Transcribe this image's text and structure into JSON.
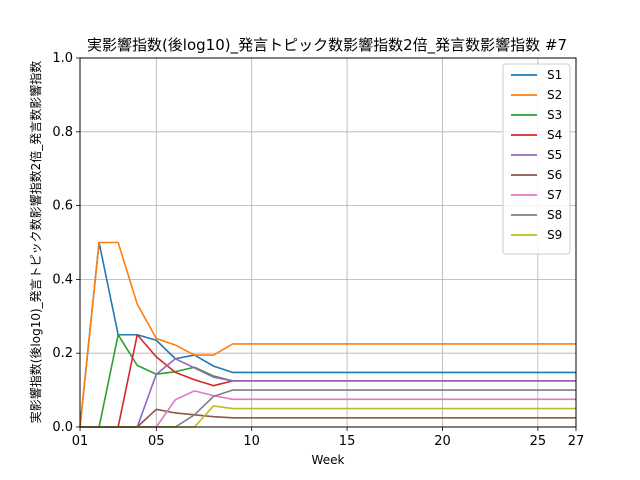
{
  "chart_data": {
    "type": "line",
    "title": "実影響指数(後log10)_発言トピック数影響指数2倍_発言数影響指数 #7",
    "xlabel": "Week",
    "ylabel": "実影響指数(後log10)_発言トピック数影響指数2倍_発言数影響指数",
    "xlim": [
      1,
      27
    ],
    "ylim": [
      0,
      1.0
    ],
    "xticks": [
      {
        "value": 1,
        "label": "01"
      },
      {
        "value": 5,
        "label": "05"
      },
      {
        "value": 10,
        "label": "10"
      },
      {
        "value": 15,
        "label": "15"
      },
      {
        "value": 20,
        "label": "20"
      },
      {
        "value": 25,
        "label": "25"
      },
      {
        "value": 27,
        "label": "27"
      }
    ],
    "yticks": [
      {
        "value": 0.0,
        "label": "0.0"
      },
      {
        "value": 0.2,
        "label": "0.2"
      },
      {
        "value": 0.4,
        "label": "0.4"
      },
      {
        "value": 0.6,
        "label": "0.6"
      },
      {
        "value": 0.8,
        "label": "0.8"
      },
      {
        "value": 1.0,
        "label": "1.0"
      }
    ],
    "grid": true,
    "legend_position": "top-right",
    "x": [
      1,
      2,
      3,
      4,
      5,
      6,
      7,
      8,
      9,
      10,
      11,
      12,
      13,
      14,
      15,
      16,
      17,
      18,
      19,
      20,
      21,
      22,
      23,
      24,
      25,
      26,
      27
    ],
    "series": [
      {
        "name": "S1",
        "color": "#1f77b4",
        "values": [
          0,
          0.5,
          0.25,
          0.25,
          0.235,
          0.185,
          0.195,
          0.165,
          0.148,
          0.148,
          0.148,
          0.148,
          0.148,
          0.148,
          0.148,
          0.148,
          0.148,
          0.148,
          0.148,
          0.148,
          0.148,
          0.148,
          0.148,
          0.148,
          0.148,
          0.148,
          0.148
        ]
      },
      {
        "name": "S2",
        "color": "#ff7f0e",
        "values": [
          0,
          0.5,
          0.5,
          0.333,
          0.24,
          0.222,
          0.195,
          0.195,
          0.225,
          0.225,
          0.225,
          0.225,
          0.225,
          0.225,
          0.225,
          0.225,
          0.225,
          0.225,
          0.225,
          0.225,
          0.225,
          0.225,
          0.225,
          0.225,
          0.225,
          0.225,
          0.225
        ]
      },
      {
        "name": "S3",
        "color": "#2ca02c",
        "values": [
          0,
          0,
          0.25,
          0.167,
          0.143,
          0.15,
          0.162,
          0.138,
          0.125,
          0.125,
          0.125,
          0.125,
          0.125,
          0.125,
          0.125,
          0.125,
          0.125,
          0.125,
          0.125,
          0.125,
          0.125,
          0.125,
          0.125,
          0.125,
          0.125,
          0.125,
          0.125
        ]
      },
      {
        "name": "S4",
        "color": "#d62728",
        "values": [
          0,
          0,
          0,
          0.25,
          0.19,
          0.148,
          0.128,
          0.112,
          0.125,
          0.125,
          0.125,
          0.125,
          0.125,
          0.125,
          0.125,
          0.125,
          0.125,
          0.125,
          0.125,
          0.125,
          0.125,
          0.125,
          0.125,
          0.125,
          0.125,
          0.125,
          0.125
        ]
      },
      {
        "name": "S5",
        "color": "#9467bd",
        "values": [
          0,
          0,
          0,
          0,
          0.143,
          0.185,
          0.16,
          0.135,
          0.125,
          0.125,
          0.125,
          0.125,
          0.125,
          0.125,
          0.125,
          0.125,
          0.125,
          0.125,
          0.125,
          0.125,
          0.125,
          0.125,
          0.125,
          0.125,
          0.125,
          0.125,
          0.125
        ]
      },
      {
        "name": "S6",
        "color": "#8c564b",
        "values": [
          0,
          0,
          0,
          0,
          0.048,
          0.038,
          0.033,
          0.028,
          0.025,
          0.025,
          0.025,
          0.025,
          0.025,
          0.025,
          0.025,
          0.025,
          0.025,
          0.025,
          0.025,
          0.025,
          0.025,
          0.025,
          0.025,
          0.025,
          0.025,
          0.025,
          0.025
        ]
      },
      {
        "name": "S7",
        "color": "#e377c2",
        "values": [
          0,
          0,
          0,
          0,
          0,
          0.074,
          0.098,
          0.085,
          0.075,
          0.075,
          0.075,
          0.075,
          0.075,
          0.075,
          0.075,
          0.075,
          0.075,
          0.075,
          0.075,
          0.075,
          0.075,
          0.075,
          0.075,
          0.075,
          0.075,
          0.075,
          0.075
        ]
      },
      {
        "name": "S8",
        "color": "#7f7f7f",
        "values": [
          0,
          0,
          0,
          0,
          0,
          0,
          0.033,
          0.083,
          0.1,
          0.1,
          0.1,
          0.1,
          0.1,
          0.1,
          0.1,
          0.1,
          0.1,
          0.1,
          0.1,
          0.1,
          0.1,
          0.1,
          0.1,
          0.1,
          0.1,
          0.1,
          0.1
        ]
      },
      {
        "name": "S9",
        "color": "#bcbd22",
        "values": [
          0,
          0,
          0,
          0,
          0,
          0,
          0,
          0.057,
          0.05,
          0.05,
          0.05,
          0.05,
          0.05,
          0.05,
          0.05,
          0.05,
          0.05,
          0.05,
          0.05,
          0.05,
          0.05,
          0.05,
          0.05,
          0.05,
          0.05,
          0.05,
          0.05
        ]
      }
    ]
  }
}
